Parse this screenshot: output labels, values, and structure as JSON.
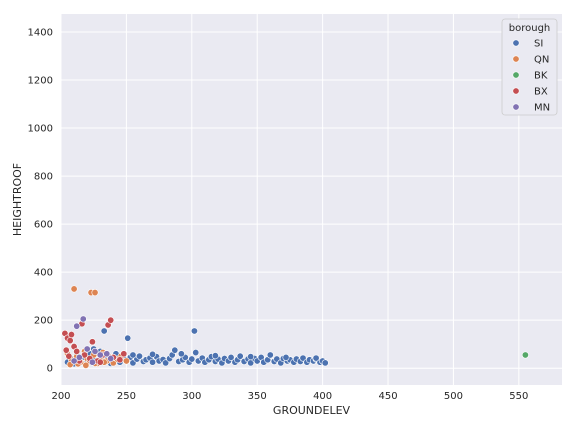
{
  "chart_data": {
    "type": "scatter",
    "title": "",
    "xlabel": "GROUNDELEV",
    "ylabel": "HEIGHTROOF",
    "xlim": [
      200,
      583
    ],
    "ylim": [
      -70,
      1475
    ],
    "x_ticks": [
      200,
      250,
      300,
      350,
      400,
      450,
      500,
      550
    ],
    "y_ticks": [
      0,
      200,
      400,
      600,
      800,
      1000,
      1200,
      1400
    ],
    "grid": true,
    "background": "#eaeaf2",
    "legend": {
      "title": "borough",
      "placement": "top-right"
    },
    "series": [
      {
        "name": "SI",
        "color": "#4c72b0",
        "points": [
          [
            205,
            25
          ],
          [
            208,
            40
          ],
          [
            210,
            18
          ],
          [
            212,
            55
          ],
          [
            215,
            30
          ],
          [
            218,
            45
          ],
          [
            220,
            22
          ],
          [
            222,
            60
          ],
          [
            225,
            35
          ],
          [
            228,
            28
          ],
          [
            230,
            70
          ],
          [
            232,
            42
          ],
          [
            235,
            50
          ],
          [
            238,
            20
          ],
          [
            240,
            33
          ],
          [
            242,
            60
          ],
          [
            245,
            25
          ],
          [
            248,
            40
          ],
          [
            250,
            30
          ],
          [
            251,
            125
          ],
          [
            253,
            45
          ],
          [
            255,
            22
          ],
          [
            258,
            38
          ],
          [
            260,
            50
          ],
          [
            263,
            28
          ],
          [
            265,
            35
          ],
          [
            268,
            42
          ],
          [
            270,
            25
          ],
          [
            273,
            48
          ],
          [
            275,
            30
          ],
          [
            278,
            36
          ],
          [
            280,
            22
          ],
          [
            283,
            40
          ],
          [
            285,
            55
          ],
          [
            287,
            75
          ],
          [
            290,
            28
          ],
          [
            293,
            35
          ],
          [
            295,
            45
          ],
          [
            298,
            25
          ],
          [
            300,
            38
          ],
          [
            302,
            155
          ],
          [
            303,
            65
          ],
          [
            305,
            30
          ],
          [
            308,
            42
          ],
          [
            310,
            25
          ],
          [
            313,
            35
          ],
          [
            315,
            48
          ],
          [
            318,
            28
          ],
          [
            320,
            38
          ],
          [
            323,
            22
          ],
          [
            325,
            40
          ],
          [
            328,
            30
          ],
          [
            330,
            45
          ],
          [
            333,
            25
          ],
          [
            335,
            35
          ],
          [
            337,
            50
          ],
          [
            340,
            28
          ],
          [
            343,
            38
          ],
          [
            345,
            22
          ],
          [
            348,
            40
          ],
          [
            350,
            30
          ],
          [
            353,
            45
          ],
          [
            355,
            25
          ],
          [
            358,
            35
          ],
          [
            360,
            55
          ],
          [
            363,
            28
          ],
          [
            365,
            38
          ],
          [
            368,
            22
          ],
          [
            370,
            40
          ],
          [
            373,
            30
          ],
          [
            375,
            35
          ],
          [
            378,
            25
          ],
          [
            380,
            38
          ],
          [
            383,
            28
          ],
          [
            385,
            42
          ],
          [
            388,
            25
          ],
          [
            390,
            35
          ],
          [
            393,
            30
          ],
          [
            395,
            38
          ],
          [
            398,
            25
          ],
          [
            400,
            30
          ],
          [
            402,
            22
          ],
          [
            233,
            155
          ],
          [
            225,
            80
          ],
          [
            240,
            45
          ],
          [
            255,
            55
          ],
          [
            270,
            58
          ],
          [
            292,
            60
          ],
          [
            318,
            52
          ],
          [
            345,
            48
          ],
          [
            372,
            45
          ],
          [
            395,
            42
          ]
        ]
      },
      {
        "name": "QN",
        "color": "#dd8452",
        "points": [
          [
            210,
            330
          ],
          [
            223,
            315
          ],
          [
            226,
            315
          ],
          [
            205,
            60
          ],
          [
            208,
            35
          ],
          [
            212,
            48
          ],
          [
            215,
            25
          ],
          [
            218,
            70
          ],
          [
            220,
            40
          ],
          [
            222,
            28
          ],
          [
            225,
            55
          ],
          [
            228,
            20
          ],
          [
            230,
            35
          ],
          [
            232,
            65
          ],
          [
            235,
            30
          ],
          [
            238,
            45
          ],
          [
            240,
            22
          ],
          [
            243,
            38
          ],
          [
            246,
            50
          ],
          [
            250,
            30
          ],
          [
            207,
            15
          ],
          [
            213,
            18
          ],
          [
            219,
            12
          ],
          [
            226,
            20
          ],
          [
            233,
            25
          ]
        ]
      },
      {
        "name": "BK",
        "color": "#55a868",
        "points": [
          [
            555,
            55
          ]
        ]
      },
      {
        "name": "BX",
        "color": "#c44e52",
        "points": [
          [
            203,
            145
          ],
          [
            205,
            125
          ],
          [
            207,
            115
          ],
          [
            208,
            140
          ],
          [
            216,
            185
          ],
          [
            236,
            180
          ],
          [
            238,
            200
          ],
          [
            224,
            110
          ],
          [
            210,
            90
          ],
          [
            212,
            70
          ],
          [
            218,
            55
          ],
          [
            222,
            40
          ],
          [
            228,
            30
          ],
          [
            232,
            55
          ],
          [
            240,
            45
          ],
          [
            245,
            35
          ],
          [
            248,
            60
          ],
          [
            204,
            75
          ],
          [
            206,
            50
          ],
          [
            214,
            30
          ],
          [
            230,
            25
          ]
        ]
      },
      {
        "name": "MN",
        "color": "#8172b3",
        "points": [
          [
            212,
            175
          ],
          [
            217,
            205
          ],
          [
            220,
            80
          ],
          [
            226,
            70
          ],
          [
            230,
            55
          ],
          [
            235,
            60
          ],
          [
            214,
            45
          ],
          [
            210,
            30
          ],
          [
            238,
            40
          ],
          [
            224,
            25
          ]
        ]
      }
    ]
  }
}
